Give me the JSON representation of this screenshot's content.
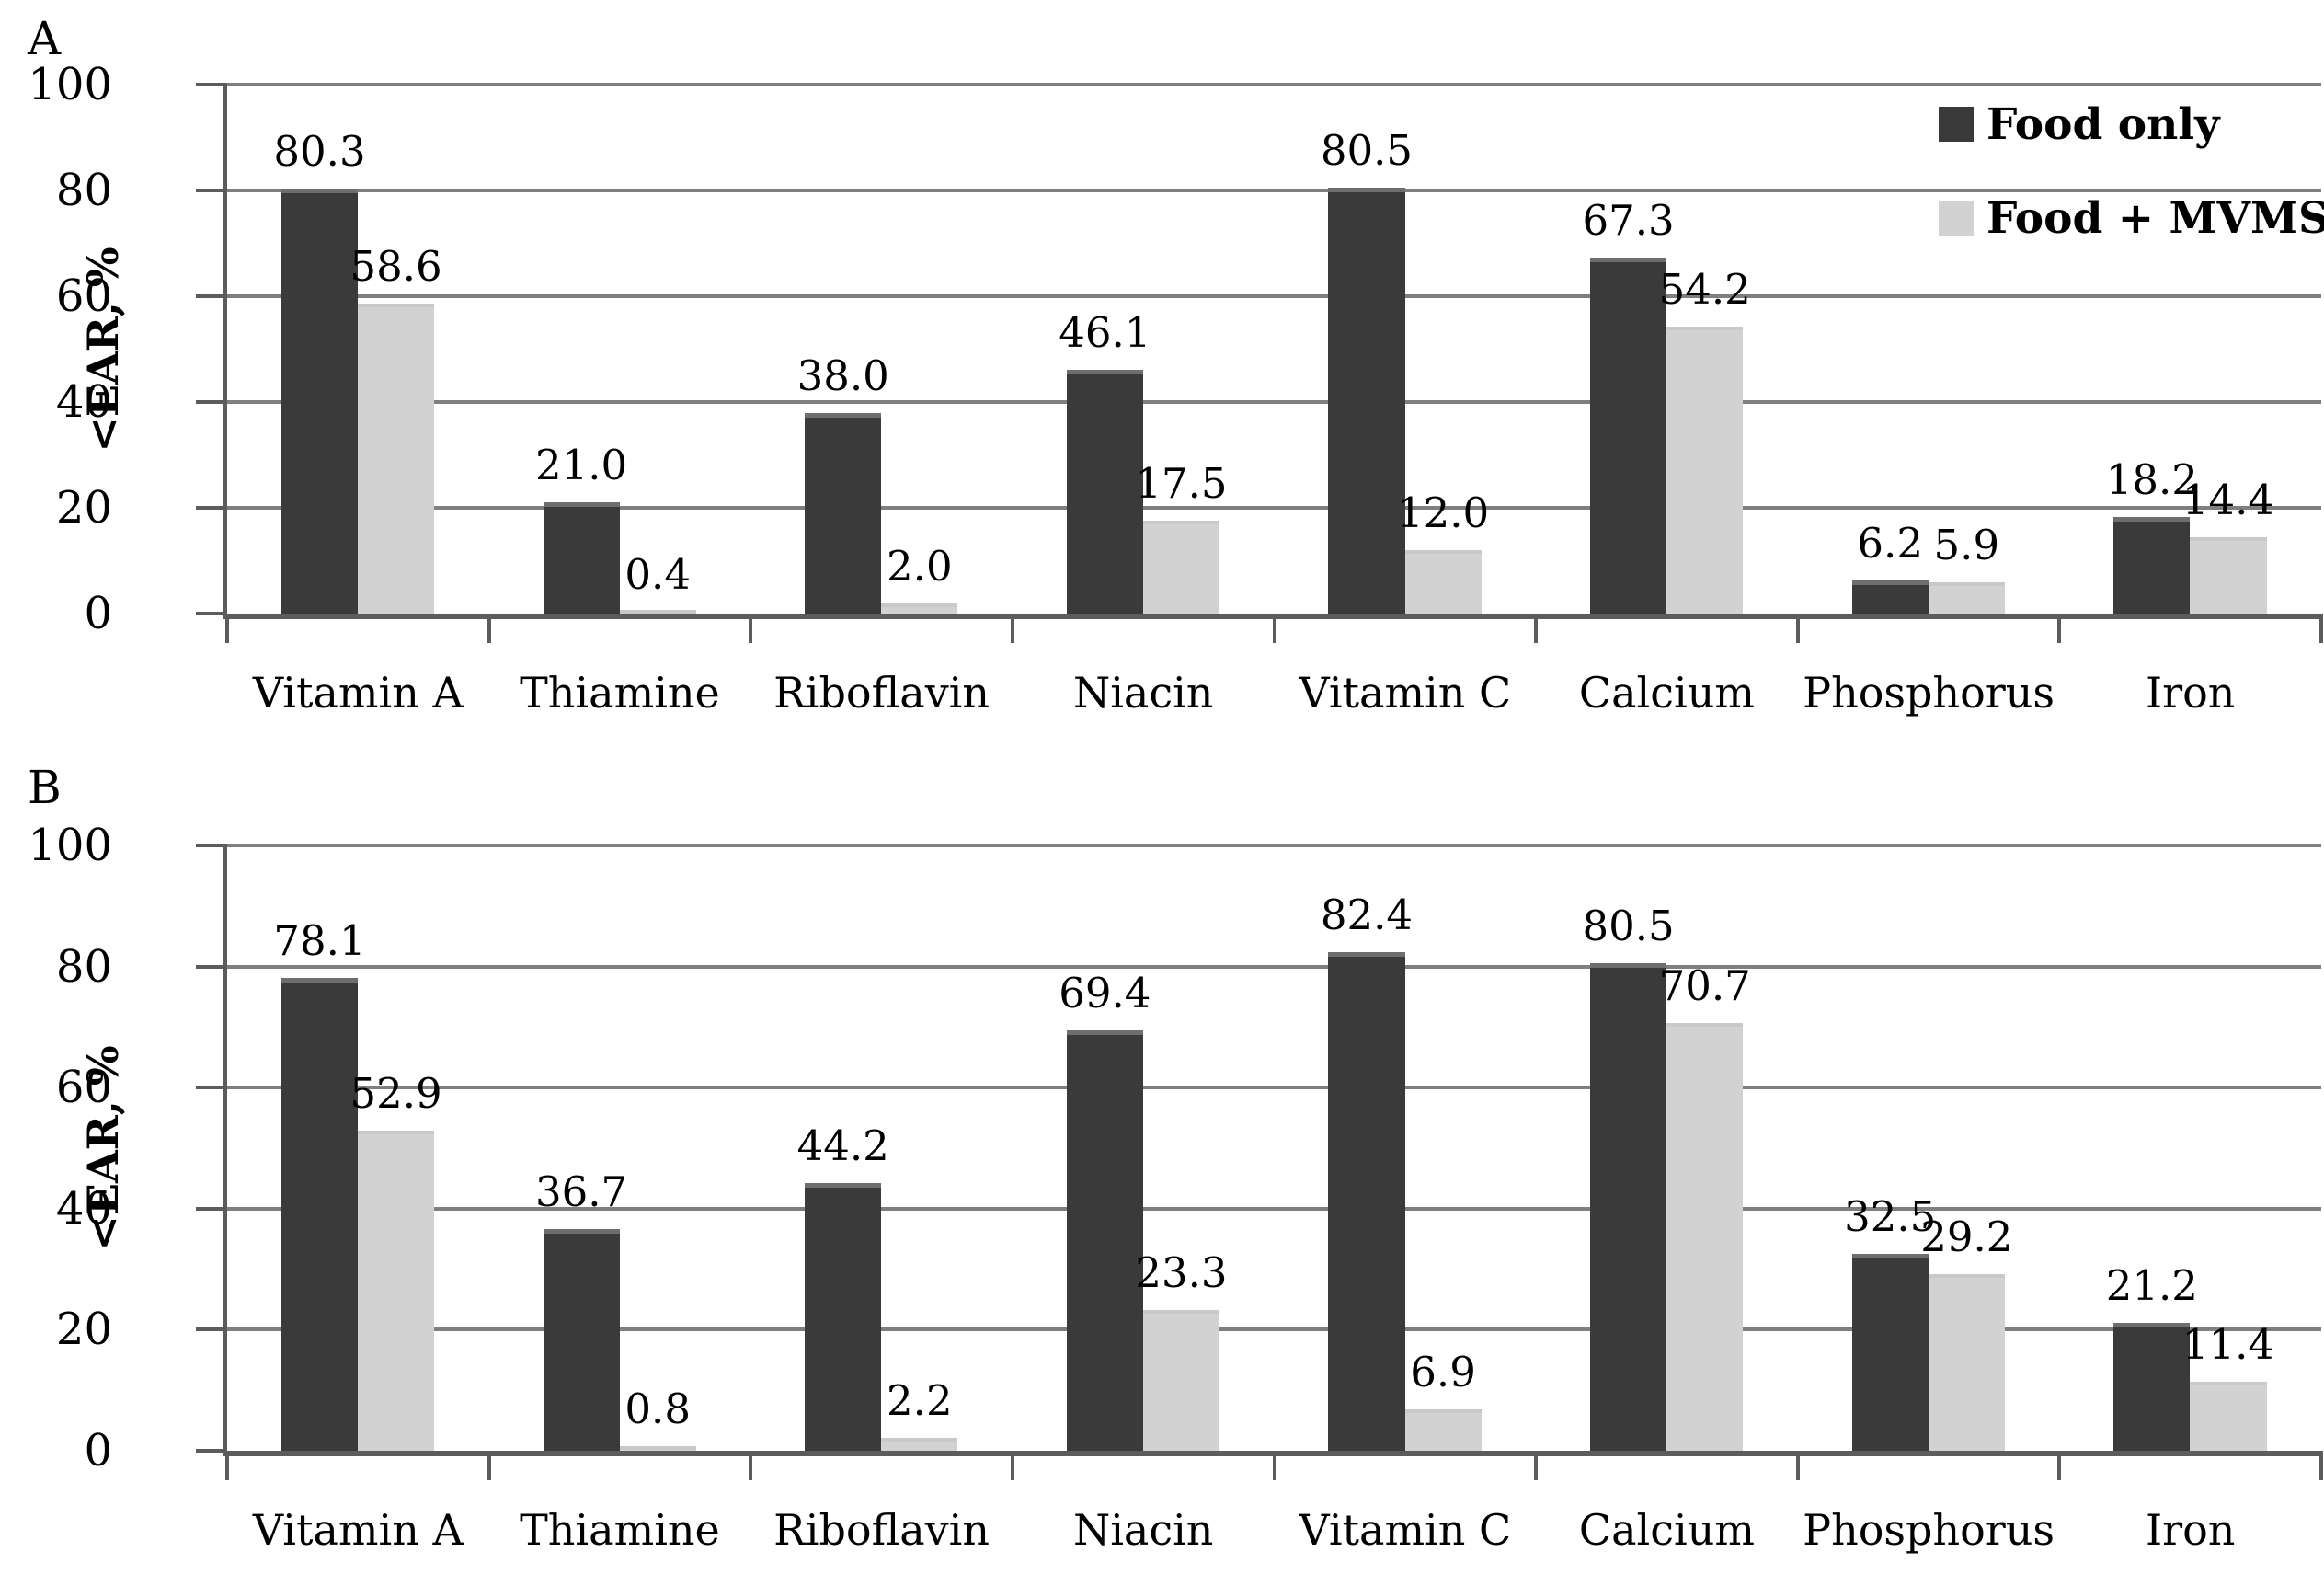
{
  "figure": {
    "background": "#ffffff",
    "colors": {
      "food_only": "#3a3a3a",
      "food_mvms": "#d2d2d2",
      "gridline": "#7f7f7f",
      "axis": "#5c5c5c",
      "text": "#000000"
    }
  },
  "chart_data": [
    {
      "type": "bar",
      "panel": "A",
      "ylabel": "<EAR, %",
      "xlabel": "",
      "ylim": [
        0,
        100
      ],
      "yticks": [
        0,
        20,
        40,
        60,
        80,
        100
      ],
      "grid": "horizontal",
      "legend_position": "top-right",
      "categories": [
        "Vitamin A",
        "Thiamine",
        "Riboflavin",
        "Niacin",
        "Vitamin C",
        "Calcium",
        "Phosphorus",
        "Iron"
      ],
      "series": [
        {
          "name": "Food only",
          "values": [
            80.3,
            21.0,
            38.0,
            46.1,
            80.5,
            67.3,
            6.2,
            18.2
          ]
        },
        {
          "name": "Food + MVMS",
          "values": [
            58.6,
            0.4,
            2.0,
            17.5,
            12.0,
            54.2,
            5.9,
            14.4
          ]
        }
      ]
    },
    {
      "type": "bar",
      "panel": "B",
      "ylabel": "<EAR, %",
      "xlabel": "",
      "ylim": [
        0,
        100
      ],
      "yticks": [
        0,
        20,
        40,
        60,
        80,
        100
      ],
      "grid": "horizontal",
      "legend_position": "none",
      "categories": [
        "Vitamin A",
        "Thiamine",
        "Riboflavin",
        "Niacin",
        "Vitamin C",
        "Calcium",
        "Phosphorus",
        "Iron"
      ],
      "series": [
        {
          "name": "Food only",
          "values": [
            78.1,
            36.7,
            44.2,
            69.4,
            82.4,
            80.5,
            32.5,
            21.2
          ]
        },
        {
          "name": "Food + MVMS",
          "values": [
            52.9,
            0.8,
            2.2,
            23.3,
            6.9,
            70.7,
            29.2,
            11.4
          ]
        }
      ]
    }
  ]
}
